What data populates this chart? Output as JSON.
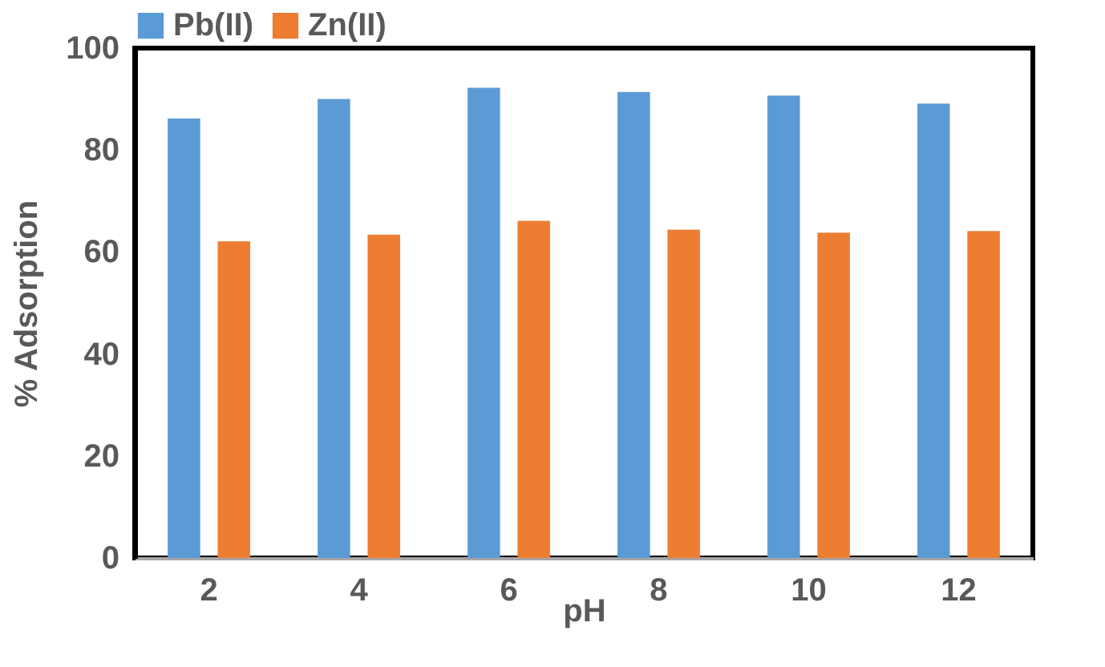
{
  "chart_data": {
    "type": "bar",
    "xlabel": "pH",
    "ylabel": "% Adsorption",
    "categories": [
      "2",
      "4",
      "6",
      "8",
      "10",
      "12"
    ],
    "series": [
      {
        "name": "Pb(II)",
        "color": "#5b9bd5",
        "values": [
          86.2,
          90,
          92.2,
          91.4,
          90.7,
          89.1
        ]
      },
      {
        "name": "Zn(II)",
        "color": "#ed7d31",
        "values": [
          62.1,
          63.4,
          66.1,
          64.4,
          63.8,
          64.1
        ]
      }
    ],
    "ylim": [
      0,
      100
    ],
    "yticks": [
      0,
      20,
      40,
      60,
      80,
      100
    ],
    "grid": false,
    "legend": "top"
  }
}
